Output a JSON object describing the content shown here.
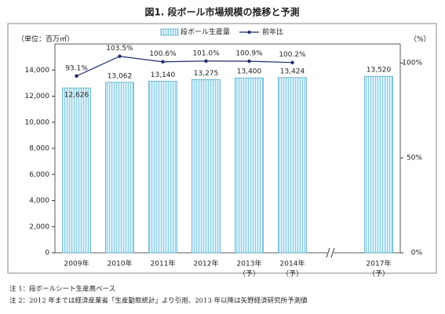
{
  "chart_data": {
    "type": "bar",
    "title": "図1. 段ボール市場規模の推移と予測",
    "y_label": "（単位：百万㎡）",
    "y2_label": "（%）",
    "categories": [
      "2009年",
      "2010年",
      "2011年",
      "2012年",
      "2013年",
      "2014年",
      null,
      "2017年"
    ],
    "category_notes": [
      null,
      null,
      null,
      null,
      "（予）",
      "（予）",
      null,
      "（予）"
    ],
    "series": [
      {
        "name": "段ボール生産量",
        "color": "#bfe7f5",
        "values": [
          12626,
          13062,
          13140,
          13275,
          13400,
          13424,
          null,
          13520
        ],
        "value_labels": [
          "12,626",
          "13,062",
          "13,140",
          "13,275",
          "13,400",
          "13,424",
          null,
          "13,520"
        ]
      },
      {
        "name": "前年比",
        "axis": "y2",
        "color": "#1f2a6b",
        "values": [
          93.1,
          103.5,
          100.6,
          101.0,
          100.9,
          100.2,
          null,
          null
        ],
        "value_labels": [
          "93.1%",
          "103.5%",
          "100.6%",
          "101.0%",
          "100.9%",
          "100.2%",
          null,
          null
        ]
      }
    ],
    "ylim": [
      0,
      16000
    ],
    "yticks": [
      0,
      {
        "value": 2000,
        "label": "2,000"
      },
      {
        "value": 4000,
        "label": "4,000"
      },
      {
        "value": 6000,
        "label": "6,000"
      },
      {
        "value": 8000,
        "label": "8,000"
      },
      {
        "value": 10000,
        "label": "10,000"
      },
      {
        "value": 12000,
        "label": "12,000"
      },
      {
        "value": 14000,
        "label": "14,000"
      }
    ],
    "y2lim": [
      0,
      110
    ],
    "y2ticks": [
      {
        "value": 0,
        "label": "0%"
      },
      {
        "value": 50,
        "label": "50%"
      },
      {
        "value": 100,
        "label": "100%"
      }
    ],
    "notes": [
      "注 1：段ボールシート生産高ベース",
      "注 2：2012 年までは経済産業省「生産動態統計」より引用、2013 年以降は矢野経済研究所予測値"
    ]
  }
}
